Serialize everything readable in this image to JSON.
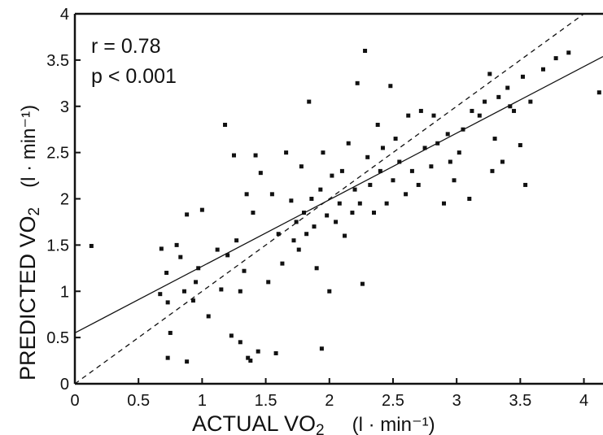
{
  "chart_data": {
    "type": "scatter",
    "title": "",
    "xlabel": {
      "main": "ACTUAL VO",
      "sub": "2",
      "unit": "(l · min⁻¹)"
    },
    "ylabel": {
      "main": "PREDICTED VO",
      "sub": "2",
      "unit": "(l · min⁻¹)"
    },
    "xlim": [
      0,
      4.15
    ],
    "ylim": [
      0,
      4
    ],
    "xticks": [
      0,
      0.5,
      1,
      1.5,
      2,
      2.5,
      3,
      3.5,
      4
    ],
    "xtick_labels": [
      "0",
      "0.5",
      "1",
      "1.5",
      "2",
      "2.5",
      "3",
      "3.5",
      "4"
    ],
    "yticks": [
      0,
      0.5,
      1,
      1.5,
      2,
      2.5,
      3,
      3.5,
      4
    ],
    "ytick_labels": [
      "0",
      "0.5",
      "1",
      "1.5",
      "2",
      "2.5",
      "3",
      "3.5",
      "4"
    ],
    "grid": false,
    "annotations": [
      "r = 0.78",
      "p < 0.001"
    ],
    "regression_line": {
      "intercept": 0.55,
      "slope": 0.72,
      "style": "solid"
    },
    "identity_line": {
      "intercept": 0,
      "slope": 1,
      "style": "dashed"
    },
    "series": [
      {
        "points": [
          [
            0.13,
            1.49
          ],
          [
            0.67,
            0.97
          ],
          [
            0.68,
            1.46
          ],
          [
            0.72,
            1.2
          ],
          [
            0.73,
            0.88
          ],
          [
            0.75,
            0.55
          ],
          [
            0.73,
            0.28
          ],
          [
            0.8,
            1.5
          ],
          [
            0.83,
            1.37
          ],
          [
            0.86,
            1.0
          ],
          [
            0.88,
            0.24
          ],
          [
            0.88,
            1.83
          ],
          [
            0.93,
            0.9
          ],
          [
            0.95,
            1.1
          ],
          [
            0.97,
            1.25
          ],
          [
            1.0,
            1.88
          ],
          [
            1.05,
            0.73
          ],
          [
            1.12,
            1.45
          ],
          [
            1.15,
            1.02
          ],
          [
            1.18,
            2.8
          ],
          [
            1.2,
            1.39
          ],
          [
            1.23,
            0.52
          ],
          [
            1.25,
            2.47
          ],
          [
            1.27,
            1.55
          ],
          [
            1.3,
            1.0
          ],
          [
            1.3,
            0.45
          ],
          [
            1.33,
            1.22
          ],
          [
            1.35,
            2.05
          ],
          [
            1.36,
            0.28
          ],
          [
            1.38,
            0.25
          ],
          [
            1.4,
            1.85
          ],
          [
            1.42,
            2.47
          ],
          [
            1.44,
            0.35
          ],
          [
            1.46,
            2.28
          ],
          [
            1.52,
            1.1
          ],
          [
            1.55,
            2.05
          ],
          [
            1.58,
            0.33
          ],
          [
            1.6,
            1.62
          ],
          [
            1.63,
            1.3
          ],
          [
            1.66,
            2.5
          ],
          [
            1.7,
            1.98
          ],
          [
            1.72,
            1.55
          ],
          [
            1.74,
            1.75
          ],
          [
            1.76,
            1.45
          ],
          [
            1.78,
            2.35
          ],
          [
            1.8,
            1.85
          ],
          [
            1.82,
            1.62
          ],
          [
            1.84,
            3.05
          ],
          [
            1.86,
            2.0
          ],
          [
            1.88,
            1.7
          ],
          [
            1.9,
            1.25
          ],
          [
            1.93,
            2.1
          ],
          [
            1.94,
            0.38
          ],
          [
            1.95,
            2.5
          ],
          [
            1.98,
            1.82
          ],
          [
            2.0,
            1.0
          ],
          [
            2.02,
            2.25
          ],
          [
            2.05,
            1.75
          ],
          [
            2.08,
            1.95
          ],
          [
            2.1,
            2.3
          ],
          [
            2.12,
            1.6
          ],
          [
            2.15,
            2.6
          ],
          [
            2.18,
            1.85
          ],
          [
            2.2,
            2.1
          ],
          [
            2.22,
            3.25
          ],
          [
            2.24,
            1.95
          ],
          [
            2.26,
            1.08
          ],
          [
            2.28,
            3.6
          ],
          [
            2.3,
            2.45
          ],
          [
            2.32,
            2.15
          ],
          [
            2.35,
            1.85
          ],
          [
            2.38,
            2.8
          ],
          [
            2.4,
            2.3
          ],
          [
            2.42,
            2.55
          ],
          [
            2.45,
            1.95
          ],
          [
            2.48,
            3.22
          ],
          [
            2.5,
            2.2
          ],
          [
            2.52,
            2.65
          ],
          [
            2.55,
            2.4
          ],
          [
            2.6,
            2.05
          ],
          [
            2.62,
            2.9
          ],
          [
            2.65,
            2.3
          ],
          [
            2.7,
            2.15
          ],
          [
            2.72,
            2.95
          ],
          [
            2.75,
            2.55
          ],
          [
            2.8,
            2.35
          ],
          [
            2.82,
            2.9
          ],
          [
            2.85,
            2.6
          ],
          [
            2.9,
            1.95
          ],
          [
            2.93,
            2.7
          ],
          [
            2.95,
            2.4
          ],
          [
            2.98,
            2.2
          ],
          [
            3.02,
            2.5
          ],
          [
            3.05,
            2.75
          ],
          [
            3.1,
            2.0
          ],
          [
            3.12,
            2.95
          ],
          [
            3.18,
            2.9
          ],
          [
            3.22,
            3.05
          ],
          [
            3.26,
            3.35
          ],
          [
            3.28,
            2.3
          ],
          [
            3.3,
            2.65
          ],
          [
            3.33,
            3.1
          ],
          [
            3.36,
            2.4
          ],
          [
            3.4,
            3.2
          ],
          [
            3.42,
            3.0
          ],
          [
            3.45,
            2.95
          ],
          [
            3.5,
            2.58
          ],
          [
            3.52,
            3.32
          ],
          [
            3.54,
            2.15
          ],
          [
            3.58,
            3.05
          ],
          [
            3.68,
            3.4
          ],
          [
            3.78,
            3.52
          ],
          [
            3.88,
            3.58
          ],
          [
            4.12,
            3.15
          ]
        ]
      }
    ]
  }
}
